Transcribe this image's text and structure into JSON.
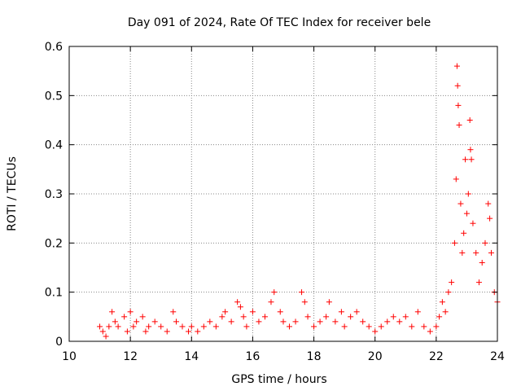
{
  "chart_data": {
    "type": "scatter",
    "title": "Day 091 of 2024, Rate Of TEC Index for receiver bele",
    "xlabel": "GPS time / hours",
    "ylabel": "ROTI / TECUs",
    "xlim": [
      10,
      24
    ],
    "ylim": [
      0,
      0.6
    ],
    "xticks": [
      10,
      12,
      14,
      16,
      18,
      20,
      22,
      24
    ],
    "yticks": [
      0,
      0.1,
      0.2,
      0.3,
      0.4,
      0.5,
      0.6
    ],
    "xtick_labels": [
      "10",
      "12",
      "14",
      "16",
      "18",
      "20",
      "22",
      "24"
    ],
    "ytick_labels": [
      "0",
      "0.1",
      "0.2",
      "0.3",
      "0.4",
      "0.5",
      "0.6"
    ],
    "grid": true,
    "marker": "+",
    "color": "#ff0000",
    "series": [
      {
        "points": [
          [
            11.0,
            0.03
          ],
          [
            11.1,
            0.02
          ],
          [
            11.2,
            0.01
          ],
          [
            11.3,
            0.03
          ],
          [
            11.4,
            0.06
          ],
          [
            11.5,
            0.04
          ],
          [
            11.6,
            0.03
          ],
          [
            11.8,
            0.05
          ],
          [
            11.9,
            0.02
          ],
          [
            12.0,
            0.06
          ],
          [
            12.1,
            0.03
          ],
          [
            12.2,
            0.04
          ],
          [
            12.4,
            0.05
          ],
          [
            12.5,
            0.02
          ],
          [
            12.6,
            0.03
          ],
          [
            12.8,
            0.04
          ],
          [
            13.0,
            0.03
          ],
          [
            13.2,
            0.02
          ],
          [
            13.4,
            0.06
          ],
          [
            13.5,
            0.04
          ],
          [
            13.7,
            0.03
          ],
          [
            13.9,
            0.02
          ],
          [
            14.0,
            0.03
          ],
          [
            14.2,
            0.02
          ],
          [
            14.4,
            0.03
          ],
          [
            14.6,
            0.04
          ],
          [
            14.8,
            0.03
          ],
          [
            15.0,
            0.05
          ],
          [
            15.1,
            0.06
          ],
          [
            15.3,
            0.04
          ],
          [
            15.5,
            0.08
          ],
          [
            15.6,
            0.07
          ],
          [
            15.7,
            0.05
          ],
          [
            15.8,
            0.03
          ],
          [
            16.0,
            0.06
          ],
          [
            16.2,
            0.04
          ],
          [
            16.4,
            0.05
          ],
          [
            16.6,
            0.08
          ],
          [
            16.7,
            0.1
          ],
          [
            16.9,
            0.06
          ],
          [
            17.0,
            0.04
          ],
          [
            17.2,
            0.03
          ],
          [
            17.4,
            0.04
          ],
          [
            17.6,
            0.1
          ],
          [
            17.7,
            0.08
          ],
          [
            17.8,
            0.05
          ],
          [
            18.0,
            0.03
          ],
          [
            18.2,
            0.04
          ],
          [
            18.4,
            0.05
          ],
          [
            18.5,
            0.08
          ],
          [
            18.7,
            0.04
          ],
          [
            18.9,
            0.06
          ],
          [
            19.0,
            0.03
          ],
          [
            19.2,
            0.05
          ],
          [
            19.4,
            0.06
          ],
          [
            19.6,
            0.04
          ],
          [
            19.8,
            0.03
          ],
          [
            20.0,
            0.02
          ],
          [
            20.2,
            0.03
          ],
          [
            20.4,
            0.04
          ],
          [
            20.6,
            0.05
          ],
          [
            20.8,
            0.04
          ],
          [
            21.0,
            0.05
          ],
          [
            21.2,
            0.03
          ],
          [
            21.4,
            0.06
          ],
          [
            21.6,
            0.03
          ],
          [
            21.8,
            0.02
          ],
          [
            22.0,
            0.03
          ],
          [
            22.1,
            0.05
          ],
          [
            22.2,
            0.08
          ],
          [
            22.3,
            0.06
          ],
          [
            22.4,
            0.1
          ],
          [
            22.5,
            0.12
          ],
          [
            22.6,
            0.2
          ],
          [
            22.65,
            0.33
          ],
          [
            22.68,
            0.56
          ],
          [
            22.7,
            0.52
          ],
          [
            22.72,
            0.48
          ],
          [
            22.75,
            0.44
          ],
          [
            22.8,
            0.28
          ],
          [
            22.85,
            0.18
          ],
          [
            22.9,
            0.22
          ],
          [
            22.95,
            0.37
          ],
          [
            23.0,
            0.26
          ],
          [
            23.05,
            0.3
          ],
          [
            23.1,
            0.45
          ],
          [
            23.12,
            0.39
          ],
          [
            23.15,
            0.37
          ],
          [
            23.2,
            0.24
          ],
          [
            23.3,
            0.18
          ],
          [
            23.4,
            0.12
          ],
          [
            23.5,
            0.16
          ],
          [
            23.6,
            0.2
          ],
          [
            23.7,
            0.28
          ],
          [
            23.75,
            0.25
          ],
          [
            23.8,
            0.18
          ],
          [
            23.9,
            0.1
          ],
          [
            24.0,
            0.08
          ]
        ]
      }
    ]
  }
}
